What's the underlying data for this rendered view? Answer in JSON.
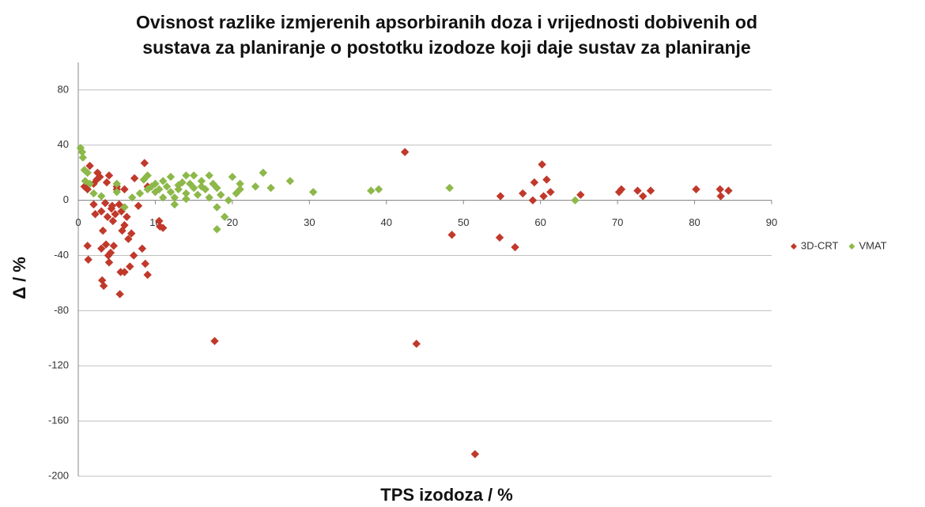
{
  "chart_data": {
    "type": "scatter",
    "title": [
      "Ovisnost razlike  izmjerenih apsorbiranih doza i  vrijednosti dobivenih od",
      "sustava za planiranje o postotku izodoze koji daje sustav za planiranje"
    ],
    "x_label": "TPS izodoza / %",
    "y_label": "Δ / %",
    "xlim": [
      0,
      90
    ],
    "xticks": [
      0,
      10,
      20,
      30,
      40,
      50,
      60,
      70,
      80,
      90
    ],
    "ylim": [
      -200,
      100
    ],
    "yticks": [
      -200,
      -160,
      -120,
      -80,
      -40,
      0,
      40,
      80
    ],
    "grid": true,
    "legend": "right",
    "series": [
      {
        "name": "3D-CRT",
        "color": "#c0392b",
        "x": [
          42.4,
          43.9,
          51.5,
          17.7,
          48.5,
          54.7,
          56.7,
          54.8,
          57.7,
          59.2,
          59,
          60.2,
          60.4,
          60.8,
          61.3,
          65.2,
          70.2,
          70.5,
          72.6,
          73.3,
          74.3,
          80.2,
          83.3,
          83.4,
          84.4,
          0.8,
          1.2,
          1.5,
          1.2,
          1.3,
          2,
          2.2,
          2.4,
          2.5,
          2.8,
          3,
          3,
          3.1,
          3.3,
          3.2,
          3.5,
          3.6,
          3.7,
          3.8,
          3.9,
          4,
          4,
          4.2,
          4.3,
          4.5,
          4.6,
          4.8,
          5,
          5,
          5.3,
          5.4,
          5.5,
          5.6,
          5.7,
          6,
          6,
          6.3,
          6.5,
          6.7,
          6.9,
          7.2,
          7.3,
          7.8,
          8.3,
          8.7,
          9,
          8.6,
          9,
          10.5,
          10.6,
          11,
          6,
          2,
          4.4
        ],
        "values": [
          35,
          -104,
          -184,
          -102,
          -25,
          -27,
          -34,
          3,
          5,
          13,
          0,
          26,
          3,
          15,
          6,
          4,
          6,
          8,
          7,
          3,
          7,
          8,
          8,
          3,
          7,
          10,
          8,
          25,
          -33,
          -43,
          -3,
          -10,
          15,
          20,
          17,
          -8,
          -35,
          -58,
          -62,
          -22,
          -2,
          -32,
          13,
          -12,
          -40,
          -45,
          18,
          -38,
          -6,
          -15,
          -33,
          -10,
          8,
          10,
          -3,
          -68,
          -52,
          -8,
          -22,
          -18,
          -52,
          -12,
          -28,
          -48,
          -24,
          -40,
          16,
          -4,
          -35,
          -46,
          -54,
          27,
          10,
          -15,
          -19,
          -20,
          8,
          12,
          -4
        ]
      },
      {
        "name": "VMAT",
        "color": "#8db84a",
        "x": [
          0.3,
          0.5,
          0.6,
          0.8,
          0.9,
          1.2,
          1.5,
          2,
          3,
          5,
          5,
          6,
          7,
          8,
          8.5,
          9,
          9,
          9.5,
          10,
          10,
          10.5,
          11,
          11.5,
          12,
          12,
          12.5,
          12.5,
          13,
          13,
          14,
          14,
          14.5,
          15,
          15,
          15.5,
          16,
          16.5,
          17,
          17,
          17.5,
          18,
          18,
          18.5,
          19,
          19.5,
          20,
          20.5,
          21,
          21,
          23,
          24,
          25,
          27.5,
          30.5,
          38,
          39,
          48.2,
          64.5,
          13.5,
          11,
          16,
          14,
          18
        ],
        "values": [
          38,
          35,
          31,
          22,
          14,
          20,
          12,
          5,
          3,
          12,
          6,
          -5,
          2,
          5,
          15,
          18,
          8,
          10,
          6,
          12,
          8,
          14,
          10,
          6,
          17,
          -3,
          2,
          11,
          8,
          5,
          18,
          12,
          18,
          9,
          4,
          14,
          8,
          18,
          2,
          12,
          -5,
          -21,
          4,
          -12,
          0,
          17,
          5,
          12,
          8,
          10,
          20,
          9,
          14,
          6,
          7,
          8,
          9,
          0,
          13,
          2,
          10,
          1,
          9
        ]
      }
    ]
  }
}
